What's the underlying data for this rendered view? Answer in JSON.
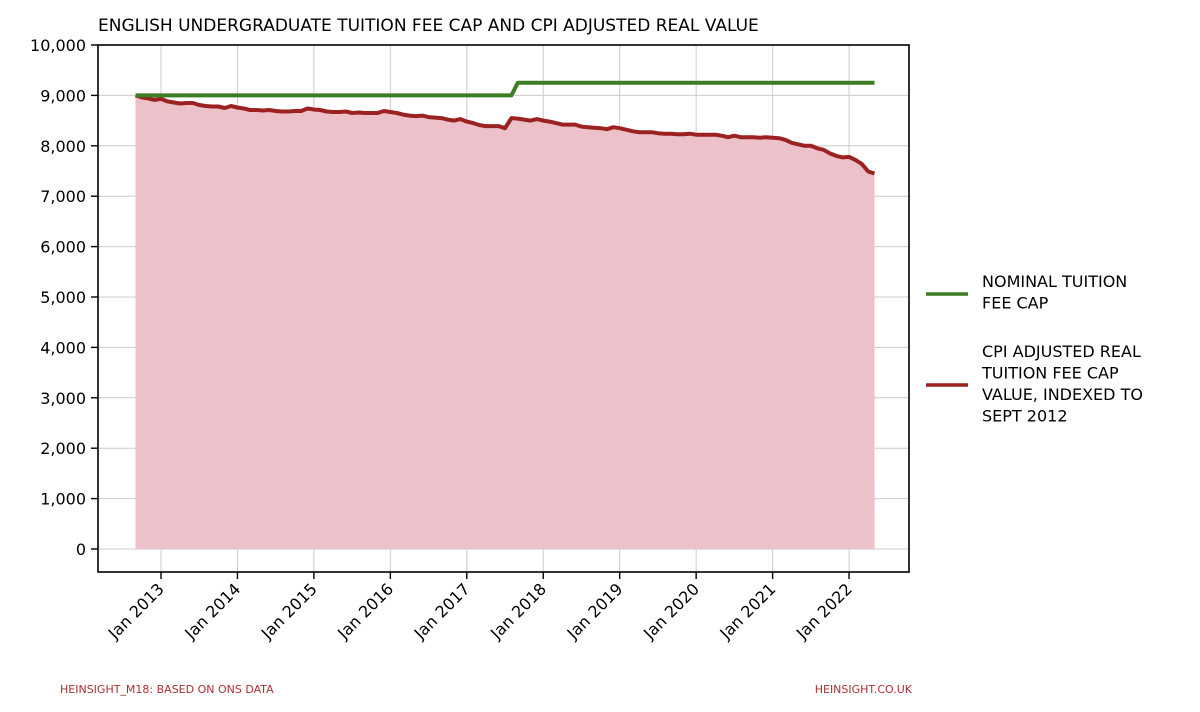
{
  "chart_data": {
    "type": "line",
    "title": "ENGLISH UNDERGRADUATE TUITION FEE CAP AND CPI ADJUSTED REAL VALUE",
    "xlabel": "",
    "ylabel": "",
    "ylim": [
      0,
      10000
    ],
    "yticks": [
      "0",
      "1,000",
      "2,000",
      "3,000",
      "4,000",
      "5,000",
      "6,000",
      "7,000",
      "8,000",
      "9,000",
      "10,000"
    ],
    "xticks": [
      "Jan 2013",
      "Jan 2014",
      "Jan 2015",
      "Jan 2016",
      "Jan 2017",
      "Jan 2018",
      "Jan 2019",
      "Jan 2020",
      "Jan 2021",
      "Jan 2022"
    ],
    "x_start": "Sep 2012",
    "x_end": "May 2022",
    "grid": true,
    "legend_position": "right",
    "series": [
      {
        "name": "NOMINAL TUITION FEE CAP",
        "color": "#3a7d22",
        "points": [
          [
            "2012-09",
            9000
          ],
          [
            "2017-08",
            9000
          ],
          [
            "2017-09",
            9250
          ],
          [
            "2022-05",
            9250
          ]
        ]
      },
      {
        "name": "CPI ADJUSTED REAL TUITION FEE CAP VALUE, INDEXED TO SEPT 2012",
        "color": "#9b2220",
        "fill": "#ecc1c9",
        "points": [
          [
            "2012-09",
            9000
          ],
          [
            "2012-10",
            8960
          ],
          [
            "2012-11",
            8940
          ],
          [
            "2012-12",
            8910
          ],
          [
            "2013-01",
            8930
          ],
          [
            "2013-02",
            8880
          ],
          [
            "2013-03",
            8860
          ],
          [
            "2013-04",
            8840
          ],
          [
            "2013-05",
            8850
          ],
          [
            "2013-06",
            8850
          ],
          [
            "2013-07",
            8810
          ],
          [
            "2013-08",
            8790
          ],
          [
            "2013-09",
            8780
          ],
          [
            "2013-10",
            8780
          ],
          [
            "2013-11",
            8750
          ],
          [
            "2013-12",
            8790
          ],
          [
            "2014-01",
            8760
          ],
          [
            "2014-02",
            8740
          ],
          [
            "2014-03",
            8710
          ],
          [
            "2014-04",
            8710
          ],
          [
            "2014-05",
            8700
          ],
          [
            "2014-06",
            8710
          ],
          [
            "2014-07",
            8690
          ],
          [
            "2014-08",
            8680
          ],
          [
            "2014-09",
            8680
          ],
          [
            "2014-10",
            8690
          ],
          [
            "2014-11",
            8690
          ],
          [
            "2014-12",
            8740
          ],
          [
            "2015-01",
            8720
          ],
          [
            "2015-02",
            8710
          ],
          [
            "2015-03",
            8680
          ],
          [
            "2015-04",
            8670
          ],
          [
            "2015-05",
            8670
          ],
          [
            "2015-06",
            8680
          ],
          [
            "2015-07",
            8650
          ],
          [
            "2015-08",
            8660
          ],
          [
            "2015-09",
            8650
          ],
          [
            "2015-10",
            8650
          ],
          [
            "2015-11",
            8650
          ],
          [
            "2015-12",
            8690
          ],
          [
            "2016-01",
            8670
          ],
          [
            "2016-02",
            8650
          ],
          [
            "2016-03",
            8620
          ],
          [
            "2016-04",
            8600
          ],
          [
            "2016-05",
            8590
          ],
          [
            "2016-06",
            8600
          ],
          [
            "2016-07",
            8570
          ],
          [
            "2016-08",
            8560
          ],
          [
            "2016-09",
            8550
          ],
          [
            "2016-10",
            8520
          ],
          [
            "2016-11",
            8500
          ],
          [
            "2016-12",
            8530
          ],
          [
            "2017-01",
            8480
          ],
          [
            "2017-02",
            8450
          ],
          [
            "2017-03",
            8410
          ],
          [
            "2017-04",
            8390
          ],
          [
            "2017-05",
            8390
          ],
          [
            "2017-06",
            8390
          ],
          [
            "2017-07",
            8350
          ],
          [
            "2017-08",
            8550
          ],
          [
            "2017-09",
            8540
          ],
          [
            "2017-10",
            8520
          ],
          [
            "2017-11",
            8500
          ],
          [
            "2017-12",
            8530
          ],
          [
            "2018-01",
            8500
          ],
          [
            "2018-02",
            8480
          ],
          [
            "2018-03",
            8450
          ],
          [
            "2018-04",
            8420
          ],
          [
            "2018-05",
            8420
          ],
          [
            "2018-06",
            8420
          ],
          [
            "2018-07",
            8380
          ],
          [
            "2018-08",
            8370
          ],
          [
            "2018-09",
            8360
          ],
          [
            "2018-10",
            8350
          ],
          [
            "2018-11",
            8330
          ],
          [
            "2018-12",
            8370
          ],
          [
            "2019-01",
            8350
          ],
          [
            "2019-02",
            8320
          ],
          [
            "2019-03",
            8290
          ],
          [
            "2019-04",
            8270
          ],
          [
            "2019-05",
            8270
          ],
          [
            "2019-06",
            8270
          ],
          [
            "2019-07",
            8250
          ],
          [
            "2019-08",
            8240
          ],
          [
            "2019-09",
            8240
          ],
          [
            "2019-10",
            8230
          ],
          [
            "2019-11",
            8230
          ],
          [
            "2019-12",
            8240
          ],
          [
            "2020-01",
            8220
          ],
          [
            "2020-02",
            8220
          ],
          [
            "2020-03",
            8220
          ],
          [
            "2020-04",
            8220
          ],
          [
            "2020-05",
            8200
          ],
          [
            "2020-06",
            8170
          ],
          [
            "2020-07",
            8200
          ],
          [
            "2020-08",
            8170
          ],
          [
            "2020-09",
            8170
          ],
          [
            "2020-10",
            8170
          ],
          [
            "2020-11",
            8160
          ],
          [
            "2020-12",
            8170
          ],
          [
            "2021-01",
            8160
          ],
          [
            "2021-02",
            8150
          ],
          [
            "2021-03",
            8120
          ],
          [
            "2021-04",
            8060
          ],
          [
            "2021-05",
            8030
          ],
          [
            "2021-06",
            8000
          ],
          [
            "2021-07",
            8000
          ],
          [
            "2021-08",
            7950
          ],
          [
            "2021-09",
            7920
          ],
          [
            "2021-10",
            7850
          ],
          [
            "2021-11",
            7800
          ],
          [
            "2021-12",
            7770
          ],
          [
            "2022-01",
            7780
          ],
          [
            "2022-02",
            7720
          ],
          [
            "2022-03",
            7640
          ],
          [
            "2022-04",
            7490
          ],
          [
            "2022-05",
            7450
          ]
        ]
      }
    ]
  },
  "footer": {
    "left": "HEINSIGHT_M18: BASED ON ONS DATA",
    "right": "HEINSIGHT.CO.UK"
  },
  "legend": {
    "items": [
      {
        "lines": [
          "NOMINAL TUITION",
          "FEE CAP"
        ],
        "color": "#3a7d22"
      },
      {
        "lines": [
          "CPI ADJUSTED REAL",
          "TUITION FEE CAP",
          "VALUE, INDEXED TO",
          "SEPT 2012"
        ],
        "color": "#9b2220"
      }
    ]
  }
}
